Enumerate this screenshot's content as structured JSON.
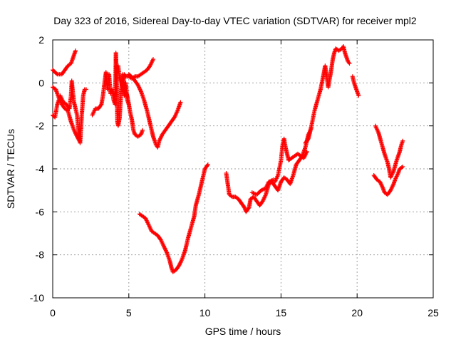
{
  "chart_data": {
    "type": "scatter",
    "title": "Day 323 of 2016, Sidereal Day-to-day VTEC variation (SDTVAR) for receiver mpl2",
    "xlabel": "GPS time / hours",
    "ylabel": "SDTVAR / TECUs",
    "xlim": [
      0,
      25
    ],
    "ylim": [
      -10,
      2
    ],
    "xticks": [
      "0",
      "5",
      "10",
      "15",
      "20",
      "25"
    ],
    "yticks": [
      "-10",
      "-8",
      "-6",
      "-4",
      "-2",
      "0",
      "2"
    ],
    "grid": true,
    "marker": "plus",
    "color": "#ff0000",
    "series": [
      {
        "points": [
          [
            0.0,
            0.6
          ],
          [
            0.3,
            0.4
          ],
          [
            0.6,
            0.4
          ],
          [
            0.8,
            0.6
          ],
          [
            1.0,
            0.8
          ],
          [
            1.2,
            0.9
          ],
          [
            1.4,
            1.3
          ],
          [
            1.5,
            1.5
          ]
        ]
      },
      {
        "points": [
          [
            0.0,
            -1.5
          ],
          [
            0.15,
            -1.6
          ],
          [
            0.3,
            -1.0
          ],
          [
            0.5,
            -0.6
          ],
          [
            0.7,
            -0.9
          ],
          [
            0.9,
            -1.0
          ],
          [
            1.1,
            -1.2
          ],
          [
            1.2,
            -0.6
          ],
          [
            1.25,
            0.1
          ],
          [
            1.3,
            -0.3
          ],
          [
            1.4,
            -0.9
          ],
          [
            1.6,
            -1.5
          ],
          [
            1.7,
            -2.3
          ],
          [
            1.8,
            -2.8
          ],
          [
            1.9,
            -1.6
          ],
          [
            2.0,
            -0.6
          ],
          [
            2.1,
            -0.3
          ],
          [
            2.2,
            -0.3
          ]
        ]
      },
      {
        "points": [
          [
            0.0,
            -0.2
          ],
          [
            0.2,
            -0.3
          ],
          [
            0.4,
            -0.7
          ],
          [
            0.6,
            -1.0
          ],
          [
            0.8,
            -1.2
          ],
          [
            1.0,
            -1.3
          ],
          [
            1.2,
            -1.8
          ],
          [
            1.4,
            -2.2
          ],
          [
            1.6,
            -2.5
          ],
          [
            1.75,
            -2.7
          ]
        ]
      },
      {
        "points": [
          [
            2.6,
            -1.5
          ],
          [
            2.8,
            -1.2
          ],
          [
            3.0,
            -1.2
          ],
          [
            3.2,
            -1.0
          ],
          [
            3.3,
            -0.6
          ],
          [
            3.4,
            0.0
          ],
          [
            3.5,
            0.5
          ],
          [
            3.6,
            -0.3
          ],
          [
            3.7,
            0.4
          ],
          [
            3.8,
            -0.5
          ],
          [
            3.9,
            -0.3
          ],
          [
            4.0,
            -0.8
          ],
          [
            4.1,
            -1.0
          ],
          [
            4.15,
            1.4
          ],
          [
            4.2,
            0.2
          ],
          [
            4.25,
            -1.8
          ],
          [
            4.3,
            -2.0
          ],
          [
            4.4,
            -1.6
          ],
          [
            4.5,
            -0.3
          ],
          [
            4.6,
            0.4
          ],
          [
            4.7,
            -0.6
          ],
          [
            4.8,
            0.0
          ],
          [
            4.9,
            -0.8
          ],
          [
            5.0,
            -1.0
          ]
        ]
      },
      {
        "points": [
          [
            4.3,
            0.8
          ],
          [
            4.4,
            0.2
          ],
          [
            4.5,
            0.0
          ],
          [
            4.6,
            -0.2
          ],
          [
            4.7,
            0.4
          ],
          [
            4.8,
            0.3
          ],
          [
            5.0,
            0.3
          ],
          [
            5.2,
            0.2
          ],
          [
            5.4,
            0.3
          ],
          [
            5.6,
            0.3
          ],
          [
            5.8,
            0.4
          ],
          [
            6.0,
            0.5
          ],
          [
            6.2,
            0.6
          ],
          [
            6.4,
            0.8
          ],
          [
            6.6,
            1.1
          ]
        ]
      },
      {
        "points": [
          [
            4.7,
            -0.3
          ],
          [
            4.9,
            -0.6
          ],
          [
            5.0,
            -1.0
          ],
          [
            5.1,
            -1.4
          ],
          [
            5.2,
            -1.7
          ],
          [
            5.3,
            -2.2
          ],
          [
            5.4,
            -2.4
          ],
          [
            5.6,
            -2.5
          ],
          [
            5.8,
            -2.4
          ],
          [
            5.9,
            -2.2
          ]
        ]
      },
      {
        "points": [
          [
            5.0,
            0.4
          ],
          [
            5.3,
            0.2
          ],
          [
            5.6,
            -0.1
          ],
          [
            5.8,
            -0.4
          ],
          [
            6.0,
            -0.8
          ],
          [
            6.2,
            -1.3
          ],
          [
            6.4,
            -1.9
          ],
          [
            6.6,
            -2.5
          ],
          [
            6.8,
            -2.9
          ],
          [
            6.9,
            -3.0
          ],
          [
            7.0,
            -2.7
          ],
          [
            7.2,
            -2.4
          ],
          [
            7.5,
            -2.1
          ],
          [
            7.8,
            -1.8
          ],
          [
            8.0,
            -1.6
          ],
          [
            8.2,
            -1.3
          ],
          [
            8.4,
            -0.9
          ]
        ]
      },
      {
        "points": [
          [
            5.7,
            -6.1
          ],
          [
            5.9,
            -6.2
          ],
          [
            6.1,
            -6.3
          ],
          [
            6.3,
            -6.6
          ],
          [
            6.5,
            -6.9
          ],
          [
            6.7,
            -7.0
          ],
          [
            6.9,
            -7.1
          ],
          [
            7.1,
            -7.3
          ],
          [
            7.3,
            -7.6
          ],
          [
            7.5,
            -7.9
          ],
          [
            7.7,
            -8.3
          ],
          [
            7.8,
            -8.6
          ],
          [
            7.9,
            -8.8
          ],
          [
            8.1,
            -8.7
          ],
          [
            8.3,
            -8.5
          ],
          [
            8.5,
            -8.2
          ],
          [
            8.7,
            -7.8
          ],
          [
            8.9,
            -7.2
          ],
          [
            9.1,
            -6.7
          ],
          [
            9.3,
            -6.2
          ],
          [
            9.4,
            -5.7
          ],
          [
            9.6,
            -5.2
          ],
          [
            9.8,
            -4.6
          ],
          [
            10.0,
            -4.0
          ],
          [
            10.2,
            -3.8
          ]
        ]
      },
      {
        "points": [
          [
            11.4,
            -4.2
          ],
          [
            11.6,
            -5.2
          ],
          [
            11.8,
            -5.3
          ],
          [
            12.0,
            -5.3
          ],
          [
            12.2,
            -5.4
          ],
          [
            12.4,
            -5.6
          ],
          [
            12.6,
            -5.8
          ],
          [
            12.7,
            -6.0
          ],
          [
            12.9,
            -5.8
          ],
          [
            13.0,
            -5.4
          ],
          [
            13.2,
            -5.3
          ],
          [
            13.4,
            -5.5
          ],
          [
            13.6,
            -5.7
          ],
          [
            13.8,
            -5.5
          ],
          [
            14.0,
            -5.2
          ],
          [
            14.2,
            -4.7
          ],
          [
            14.4,
            -4.6
          ],
          [
            14.6,
            -4.8
          ],
          [
            14.8,
            -5.0
          ],
          [
            15.0,
            -4.6
          ],
          [
            15.2,
            -4.4
          ],
          [
            15.4,
            -4.5
          ],
          [
            15.6,
            -4.7
          ],
          [
            15.8,
            -4.3
          ],
          [
            16.0,
            -3.8
          ],
          [
            16.2,
            -3.6
          ],
          [
            16.4,
            -3.4
          ],
          [
            16.6,
            -3.0
          ],
          [
            16.8,
            -2.4
          ],
          [
            17.0,
            -2.1
          ]
        ]
      },
      {
        "points": [
          [
            13.1,
            -5.1
          ],
          [
            13.4,
            -5.2
          ],
          [
            13.7,
            -5.0
          ],
          [
            14.0,
            -4.9
          ],
          [
            14.2,
            -4.6
          ],
          [
            14.5,
            -4.5
          ]
        ]
      },
      {
        "points": [
          [
            14.6,
            -4.6
          ],
          [
            14.8,
            -4.3
          ],
          [
            15.0,
            -3.6
          ],
          [
            15.1,
            -2.9
          ],
          [
            15.2,
            -2.6
          ],
          [
            15.3,
            -3.0
          ],
          [
            15.5,
            -3.6
          ],
          [
            15.7,
            -3.5
          ],
          [
            15.9,
            -3.4
          ],
          [
            16.1,
            -3.3
          ],
          [
            16.3,
            -3.4
          ],
          [
            16.5,
            -3.5
          ],
          [
            16.7,
            -3.2
          ]
        ]
      },
      {
        "points": [
          [
            16.6,
            -2.8
          ],
          [
            16.8,
            -2.6
          ],
          [
            17.0,
            -2.0
          ],
          [
            17.2,
            -1.3
          ],
          [
            17.4,
            -0.8
          ],
          [
            17.6,
            -0.3
          ],
          [
            17.8,
            0.4
          ],
          [
            17.9,
            0.8
          ],
          [
            18.0,
            0.3
          ],
          [
            18.1,
            -0.2
          ],
          [
            18.2,
            0.2
          ],
          [
            18.3,
            0.6
          ],
          [
            18.4,
            1.1
          ],
          [
            18.5,
            1.4
          ],
          [
            18.6,
            1.6
          ],
          [
            18.8,
            1.5
          ],
          [
            19.0,
            1.6
          ],
          [
            19.1,
            1.7
          ],
          [
            19.2,
            1.4
          ],
          [
            19.4,
            1.0
          ],
          [
            19.5,
            0.9
          ]
        ]
      },
      {
        "points": [
          [
            19.7,
            0.3
          ],
          [
            19.8,
            0.0
          ],
          [
            19.9,
            -0.2
          ],
          [
            20.0,
            -0.4
          ],
          [
            20.1,
            -0.6
          ]
        ]
      },
      {
        "points": [
          [
            21.1,
            -4.3
          ],
          [
            21.3,
            -4.5
          ],
          [
            21.5,
            -4.6
          ],
          [
            21.7,
            -4.9
          ],
          [
            21.8,
            -5.1
          ],
          [
            22.0,
            -5.2
          ],
          [
            22.2,
            -5.0
          ],
          [
            22.4,
            -4.7
          ],
          [
            22.5,
            -4.5
          ],
          [
            22.7,
            -4.2
          ],
          [
            22.8,
            -4.0
          ],
          [
            23.0,
            -3.9
          ]
        ]
      },
      {
        "points": [
          [
            21.2,
            -2.0
          ],
          [
            21.4,
            -2.3
          ],
          [
            21.6,
            -2.8
          ],
          [
            21.8,
            -3.3
          ],
          [
            22.0,
            -3.7
          ],
          [
            22.1,
            -4.0
          ],
          [
            22.2,
            -4.4
          ],
          [
            22.4,
            -4.1
          ],
          [
            22.6,
            -3.6
          ],
          [
            22.8,
            -3.2
          ],
          [
            22.9,
            -2.9
          ],
          [
            23.0,
            -2.7
          ]
        ]
      }
    ]
  }
}
